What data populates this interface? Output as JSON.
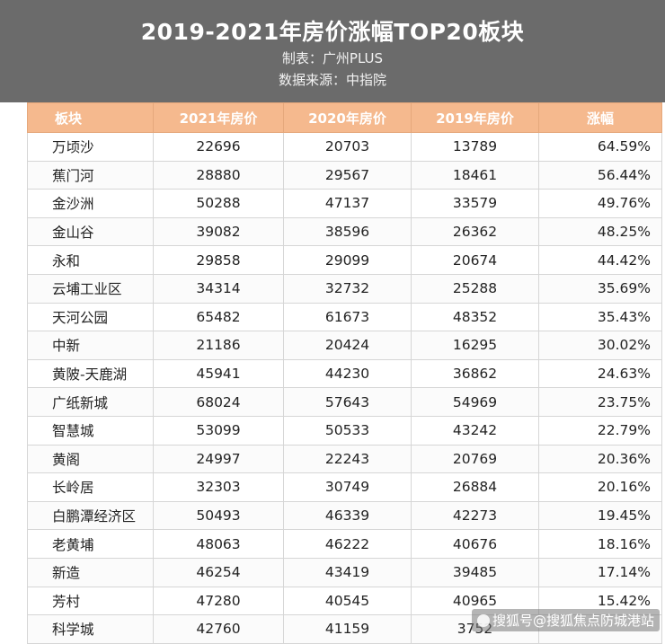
{
  "header": {
    "title": "2019-2021年房价涨幅TOP20板块",
    "maker": "制表：广州PLUS",
    "source": "数据来源：中指院"
  },
  "table": {
    "columns": [
      "板块",
      "2021年房价",
      "2020年房价",
      "2019年房价",
      "涨幅"
    ],
    "rows": [
      [
        "万顷沙",
        "22696",
        "20703",
        "13789",
        "64.59%"
      ],
      [
        "蕉门河",
        "28880",
        "29567",
        "18461",
        "56.44%"
      ],
      [
        "金沙洲",
        "50288",
        "47137",
        "33579",
        "49.76%"
      ],
      [
        "金山谷",
        "39082",
        "38596",
        "26362",
        "48.25%"
      ],
      [
        "永和",
        "29858",
        "29099",
        "20674",
        "44.42%"
      ],
      [
        "云埔工业区",
        "34314",
        "32732",
        "25288",
        "35.69%"
      ],
      [
        "天河公园",
        "65482",
        "61673",
        "48352",
        "35.43%"
      ],
      [
        "中新",
        "21186",
        "20424",
        "16295",
        "30.02%"
      ],
      [
        "黄陂-天鹿湖",
        "45941",
        "44230",
        "36862",
        "24.63%"
      ],
      [
        "广纸新城",
        "68024",
        "57643",
        "54969",
        "23.75%"
      ],
      [
        "智慧城",
        "53099",
        "50533",
        "43242",
        "22.79%"
      ],
      [
        "黄阁",
        "24997",
        "22243",
        "20769",
        "20.36%"
      ],
      [
        "长岭居",
        "32303",
        "30749",
        "26884",
        "20.16%"
      ],
      [
        "白鹏潭经济区",
        "50493",
        "46339",
        "42273",
        "19.45%"
      ],
      [
        "老黄埔",
        "48063",
        "46222",
        "40676",
        "18.16%"
      ],
      [
        "新造",
        "46254",
        "43419",
        "39485",
        "17.14%"
      ],
      [
        "芳村",
        "47280",
        "40545",
        "40965",
        "15.42%"
      ],
      [
        "科学城",
        "42760",
        "41159",
        "3752",
        ""
      ]
    ]
  },
  "watermark": {
    "text": "搜狐号@搜狐焦点防城港站"
  },
  "colors": {
    "header_bg": "#6b6b6b",
    "table_header_bg": "#f5b98e"
  }
}
